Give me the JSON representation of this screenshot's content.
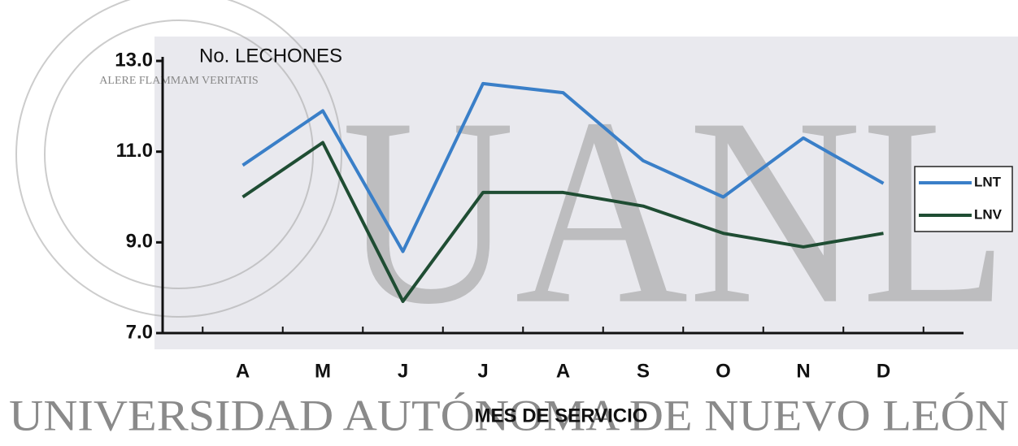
{
  "chart_data": {
    "type": "line",
    "y_label": "No. LECHONES",
    "x_label": "MES DE SERVICIO",
    "categories": [
      "A",
      "M",
      "J",
      "J",
      "A",
      "S",
      "O",
      "N",
      "D"
    ],
    "series": [
      {
        "name": "LNT",
        "color": "#3a7fc8",
        "values": [
          10.7,
          11.9,
          8.8,
          12.5,
          12.3,
          10.8,
          10.0,
          11.3,
          10.3
        ]
      },
      {
        "name": "LNV",
        "color": "#1f4d33",
        "values": [
          10.0,
          11.2,
          7.7,
          10.1,
          10.1,
          9.8,
          9.2,
          8.9,
          9.2
        ]
      }
    ],
    "ylim": [
      7,
      13
    ],
    "yticks": [
      {
        "value": 7,
        "label": "7.0"
      },
      {
        "value": 9,
        "label": "9.0"
      },
      {
        "value": 11,
        "label": "11.0"
      },
      {
        "value": 13,
        "label": "13.0"
      }
    ],
    "legend": "right"
  },
  "watermark": {
    "letters": "UANL",
    "university": "UNIVERSIDAD AUTÓNOMA DE NUEVO LEÓN",
    "motto": "ALERE FLAMMAM VERITATIS"
  }
}
